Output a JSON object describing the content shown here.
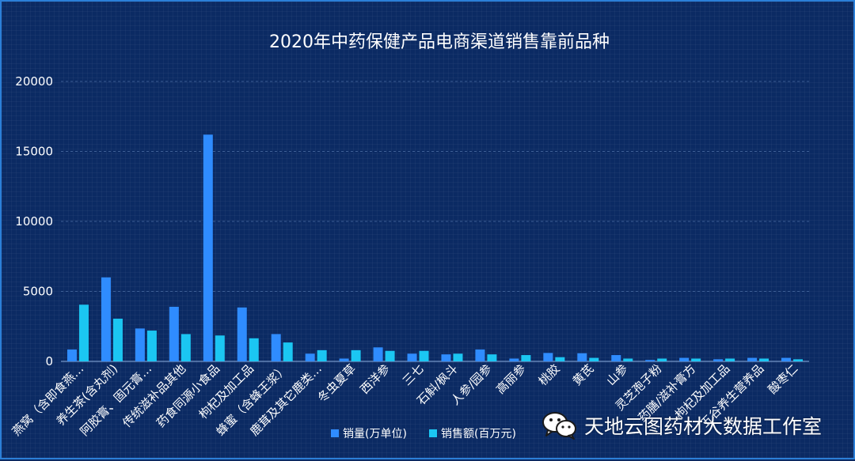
{
  "chart_data": {
    "type": "bar",
    "title": "2020年中药保健产品电商渠道销售靠前品种",
    "xlabel": "",
    "ylabel": "",
    "ylim": [
      0,
      20000
    ],
    "yticks": [
      0,
      5000,
      10000,
      15000,
      20000
    ],
    "grid": true,
    "legend_position": "bottom-center",
    "categories": [
      "燕窝（含即食燕…",
      "养生茶(含丸剂)",
      "阿胶膏、固元膏…",
      "传统滋补品其他",
      "药食同源小食品",
      "枸杞及加工品",
      "蜂蜜（含蜂王浆）",
      "鹿茸及其它鹿类…",
      "冬虫夏草",
      "西洋参",
      "三七",
      "石斛/枫斗",
      "人参/园参",
      "高丽参",
      "桃胶",
      "黄芪",
      "山参",
      "灵芝孢子粉",
      "药膳/滋补膏方",
      "枸杞及加工品",
      "五谷养生营养品",
      "酸枣仁"
    ],
    "series": [
      {
        "name": "销量(万单位)",
        "color": "#2f8cff",
        "values": [
          850,
          6000,
          2350,
          3900,
          16200,
          3850,
          1950,
          550,
          200,
          1000,
          550,
          500,
          850,
          200,
          600,
          580,
          450,
          100,
          250,
          150,
          250,
          250
        ]
      },
      {
        "name": "销售额(百万元)",
        "color": "#1bc6f2",
        "values": [
          4050,
          3050,
          2200,
          1950,
          1850,
          1650,
          1350,
          800,
          800,
          750,
          750,
          550,
          500,
          450,
          300,
          250,
          200,
          200,
          200,
          200,
          200,
          150
        ]
      }
    ]
  },
  "watermark": {
    "text": "天地云图药材大数据工作室",
    "icon": "wechat-icon"
  }
}
